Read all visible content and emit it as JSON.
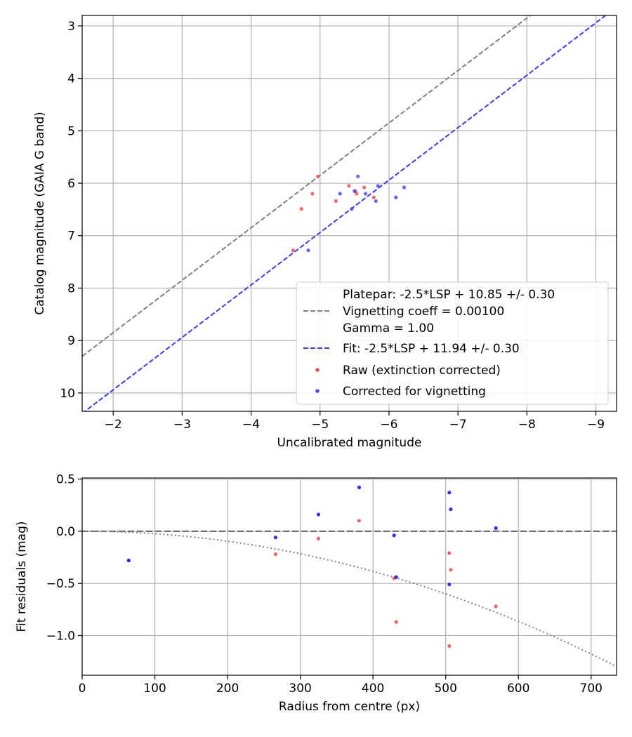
{
  "chart_data": [
    {
      "type": "scatter",
      "xlabel": "Uncalibrated magnitude",
      "ylabel": "Catalog magnitude (GAIA G band)",
      "xlim": [
        -1.55,
        -9.3
      ],
      "ylim": [
        10.35,
        2.8
      ],
      "x_ticks": [
        -2,
        -3,
        -4,
        -5,
        -6,
        -7,
        -8,
        -9
      ],
      "x_tick_labels": [
        "−2",
        "−3",
        "−4",
        "−5",
        "−6",
        "−7",
        "−8",
        "−9"
      ],
      "y_ticks": [
        3,
        4,
        5,
        6,
        7,
        8,
        9,
        10
      ],
      "y_tick_labels": [
        "3",
        "4",
        "5",
        "6",
        "7",
        "8",
        "9",
        "10"
      ],
      "grid": true,
      "legend_position": "lower-right",
      "lines": [
        {
          "name": "Platepar: -2.5*LSP + 10.85 +/- 0.30\nVignetting coeff = 0.00100\nGamma = 1.00",
          "intercept": 10.85,
          "color": "#808080",
          "style": "dashed"
        },
        {
          "name": "Fit: -2.5*LSP + 11.94 +/- 0.30",
          "intercept": 11.94,
          "color": "#3b3bf0",
          "style": "dashed"
        }
      ],
      "series": [
        {
          "name": "Raw (extinction corrected)",
          "color": "#f05050",
          "x": [
            -4.61,
            -4.73,
            -4.89,
            -4.97,
            -5.23,
            -5.42,
            -5.51,
            -5.53,
            -5.64,
            -5.78
          ],
          "y": [
            7.28,
            6.49,
            6.2,
            5.87,
            6.34,
            6.05,
            6.15,
            6.2,
            6.08,
            6.27
          ]
        },
        {
          "name": "Corrected for vignetting",
          "color": "#4b4bf0",
          "x": [
            -4.83,
            -5.29,
            -5.46,
            -5.5,
            -5.55,
            -5.66,
            -5.81,
            -5.84,
            -6.1,
            -6.22
          ],
          "y": [
            7.28,
            6.2,
            6.49,
            6.15,
            5.87,
            6.2,
            6.34,
            6.05,
            6.27,
            6.08
          ]
        }
      ]
    },
    {
      "type": "scatter",
      "xlabel": "Radius from centre (px)",
      "ylabel": "Fit residuals (mag)",
      "xlim": [
        0,
        735
      ],
      "ylim": [
        -1.38,
        0.51
      ],
      "x_ticks": [
        0,
        100,
        200,
        300,
        400,
        500,
        600,
        700
      ],
      "x_tick_labels": [
        "0",
        "100",
        "200",
        "300",
        "400",
        "500",
        "600",
        "700"
      ],
      "y_ticks": [
        0.5,
        0.0,
        -0.5,
        -1.0
      ],
      "y_tick_labels": [
        "0.5",
        "0.0",
        "−0.5",
        "−1.0"
      ],
      "grid": true,
      "lines": [
        {
          "kind": "horizontal",
          "y": 0,
          "color": "#606060",
          "style": "dashed"
        },
        {
          "kind": "quadratic",
          "coeff": -2.4e-06,
          "color": "#808080",
          "style": "dotted"
        }
      ],
      "series": [
        {
          "color": "#f05050",
          "x": [
            64,
            266,
            325,
            381,
            429,
            432,
            505,
            505,
            507,
            569
          ],
          "y": [
            -0.28,
            -0.22,
            -0.07,
            0.1,
            -0.45,
            -0.87,
            -1.1,
            -0.21,
            -0.37,
            -0.72
          ]
        },
        {
          "color": "#1a1af0",
          "x": [
            64,
            266,
            325,
            381,
            429,
            432,
            505,
            505,
            507,
            569
          ],
          "y": [
            -0.28,
            -0.06,
            0.16,
            0.42,
            -0.04,
            -0.44,
            -0.51,
            0.37,
            0.21,
            0.03
          ]
        }
      ]
    }
  ]
}
